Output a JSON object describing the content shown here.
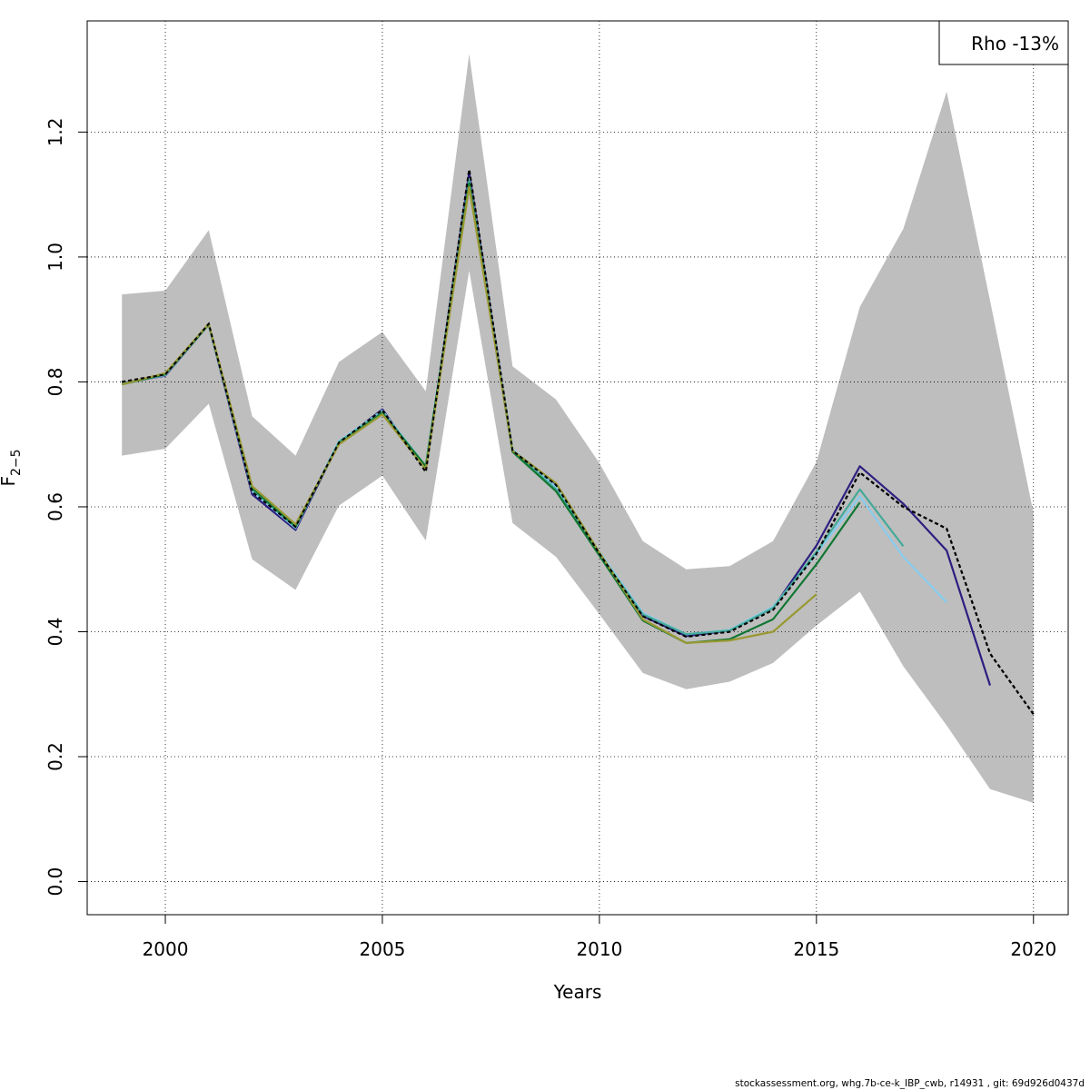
{
  "chart_data": {
    "type": "line",
    "title": "",
    "xlabel": "Years",
    "ylabel_main": "F",
    "ylabel_sub": "2−5",
    "xlim": [
      1998.2,
      2020.8
    ],
    "ylim": [
      -0.053,
      1.378
    ],
    "x_ticks": [
      2000,
      2005,
      2010,
      2015,
      2020
    ],
    "x_tick_labels": [
      "2000",
      "2005",
      "2010",
      "2015",
      "2020"
    ],
    "y_ticks": [
      0.0,
      0.2,
      0.4,
      0.6,
      0.8,
      1.0,
      1.2
    ],
    "y_tick_labels": [
      "0.0",
      "0.2",
      "0.4",
      "0.6",
      "0.8",
      "1.0",
      "1.2"
    ],
    "grid": true,
    "legend": {
      "placement": "top-right",
      "text": "Rho -13%"
    },
    "confidence_band": {
      "color": "#bebebe",
      "x": [
        1999,
        2000,
        2001,
        2002,
        2003,
        2004,
        2005,
        2006,
        2007,
        2008,
        2009,
        2010,
        2011,
        2012,
        2013,
        2014,
        2015,
        2016,
        2017,
        2018,
        2019,
        2020
      ],
      "upper": [
        0.94,
        0.946,
        1.043,
        0.745,
        0.682,
        0.832,
        0.88,
        0.785,
        1.325,
        0.825,
        0.772,
        0.67,
        0.545,
        0.5,
        0.505,
        0.545,
        0.672,
        0.92,
        1.045,
        1.265,
        0.93,
        0.59
      ],
      "lower": [
        0.682,
        0.693,
        0.765,
        0.516,
        0.467,
        0.602,
        0.65,
        0.546,
        0.978,
        0.574,
        0.52,
        0.428,
        0.334,
        0.308,
        0.32,
        0.35,
        0.41,
        0.464,
        0.345,
        0.25,
        0.148,
        0.126
      ]
    },
    "series": [
      {
        "color": "#000000",
        "dashed": true,
        "x": [
          1999,
          2000,
          2001,
          2002,
          2003,
          2004,
          2005,
          2006,
          2007,
          2008,
          2009,
          2010,
          2011,
          2012,
          2013,
          2014,
          2015,
          2016,
          2017,
          2018,
          2019,
          2020
        ],
        "values": [
          0.8,
          0.812,
          0.893,
          0.624,
          0.568,
          0.703,
          0.755,
          0.656,
          1.14,
          0.69,
          0.635,
          0.525,
          0.425,
          0.392,
          0.4,
          0.435,
          0.525,
          0.655,
          0.6,
          0.565,
          0.365,
          0.268
        ]
      },
      {
        "color": "#2d1e80",
        "dashed": false,
        "x": [
          1999,
          2000,
          2001,
          2002,
          2003,
          2004,
          2005,
          2006,
          2007,
          2008,
          2009,
          2010,
          2011,
          2012,
          2013,
          2014,
          2015,
          2016,
          2017,
          2018,
          2019
        ],
        "values": [
          0.798,
          0.81,
          0.892,
          0.62,
          0.563,
          0.703,
          0.756,
          0.66,
          1.135,
          0.69,
          0.634,
          0.526,
          0.425,
          0.393,
          0.402,
          0.438,
          0.538,
          0.665,
          0.605,
          0.53,
          0.314
        ]
      },
      {
        "color": "#88ccee",
        "dashed": false,
        "x": [
          1999,
          2000,
          2001,
          2002,
          2003,
          2004,
          2005,
          2006,
          2007,
          2008,
          2009,
          2010,
          2011,
          2012,
          2013,
          2014,
          2015,
          2016,
          2017,
          2018
        ],
        "values": [
          0.797,
          0.811,
          0.892,
          0.625,
          0.566,
          0.705,
          0.754,
          0.665,
          1.125,
          0.692,
          0.632,
          0.528,
          0.43,
          0.396,
          0.403,
          0.44,
          0.525,
          0.617,
          0.52,
          0.447
        ]
      },
      {
        "color": "#44aa99",
        "dashed": false,
        "x": [
          1999,
          2000,
          2001,
          2002,
          2003,
          2004,
          2005,
          2006,
          2007,
          2008,
          2009,
          2010,
          2011,
          2012,
          2013,
          2014,
          2015,
          2016,
          2017
        ],
        "values": [
          0.797,
          0.812,
          0.892,
          0.628,
          0.567,
          0.704,
          0.752,
          0.665,
          1.122,
          0.69,
          0.628,
          0.525,
          0.428,
          0.396,
          0.402,
          0.438,
          0.528,
          0.628,
          0.537
        ]
      },
      {
        "color": "#117733",
        "dashed": false,
        "x": [
          1999,
          2000,
          2001,
          2002,
          2003,
          2004,
          2005,
          2006,
          2007,
          2008,
          2009,
          2010,
          2011,
          2012,
          2013,
          2014,
          2015,
          2016
        ],
        "values": [
          0.796,
          0.812,
          0.892,
          0.63,
          0.569,
          0.701,
          0.75,
          0.665,
          1.118,
          0.688,
          0.625,
          0.522,
          0.418,
          0.382,
          0.388,
          0.42,
          0.508,
          0.607
        ]
      },
      {
        "color": "#999933",
        "dashed": false,
        "x": [
          1999,
          2000,
          2001,
          2002,
          2003,
          2004,
          2005,
          2006,
          2007,
          2008,
          2009,
          2010,
          2011,
          2012,
          2013,
          2014,
          2015
        ],
        "values": [
          0.796,
          0.814,
          0.893,
          0.633,
          0.572,
          0.7,
          0.748,
          0.66,
          1.112,
          0.69,
          0.638,
          0.527,
          0.42,
          0.382,
          0.386,
          0.4,
          0.46
        ]
      }
    ]
  },
  "footer": "stockassessment.org, whg.7b-ce-k_IBP_cwb, r14931 , git: 69d926d0437d"
}
